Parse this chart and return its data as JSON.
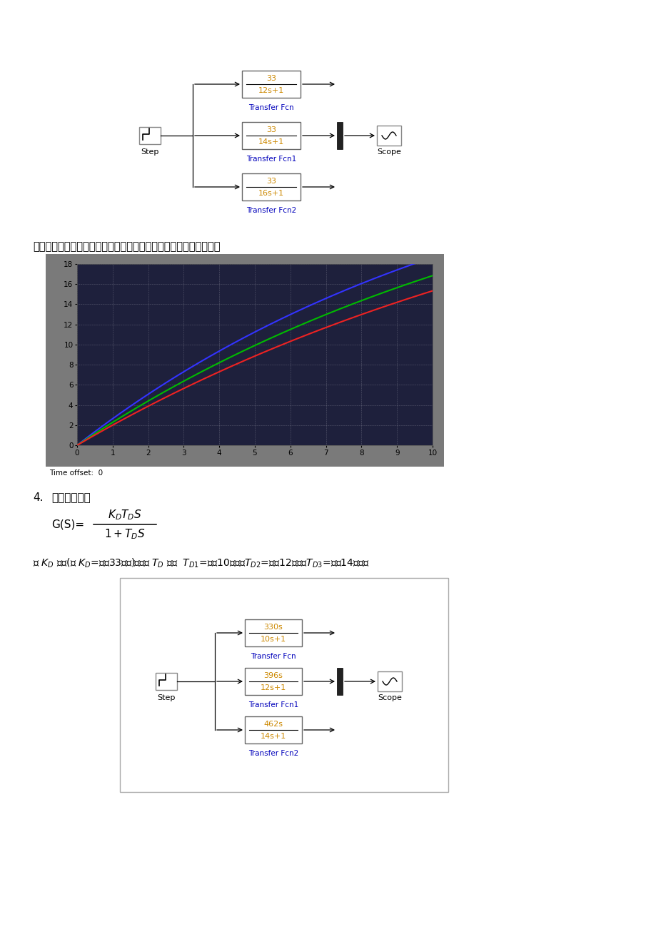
{
  "bg_color": "#ffffff",
  "scope_plot": {
    "outer_bg": "#7a7a7a",
    "inner_bg": "#2a2a4a",
    "x_min": 0,
    "x_max": 10,
    "y_min": 0,
    "y_max": 18,
    "x_ticks": [
      0,
      1,
      2,
      3,
      4,
      5,
      6,
      7,
      8,
      9,
      10
    ],
    "y_ticks": [
      0,
      2,
      4,
      6,
      8,
      10,
      12,
      14,
      16,
      18
    ],
    "curves": [
      {
        "color": "#3333ff",
        "T": 12,
        "K": 33
      },
      {
        "color": "#00bb00",
        "T": 14,
        "K": 33
      },
      {
        "color": "#ee2222",
        "T": 16,
        "K": 33
      }
    ]
  },
  "diagram1": {
    "blocks": [
      {
        "num": "33",
        "den": "12s+1",
        "label": "Transfer Fcn"
      },
      {
        "num": "33",
        "den": "14s+1",
        "label": "Transfer Fcn1"
      },
      {
        "num": "33",
        "den": "16s+1",
        "label": "Transfer Fcn2"
      }
    ],
    "step_label": "Step",
    "scope_label": "Scope"
  },
  "diagram2": {
    "blocks": [
      {
        "num": "330s",
        "den": "10s+1",
        "label": "Transfer Fcn"
      },
      {
        "num": "396s",
        "den": "12s+1",
        "label": "Transfer Fcn1"
      },
      {
        "num": "462s",
        "den": "14s+1",
        "label": "Transfer Fcn2"
      }
    ],
    "step_label": "Step",
    "scope_label": "Scope"
  }
}
